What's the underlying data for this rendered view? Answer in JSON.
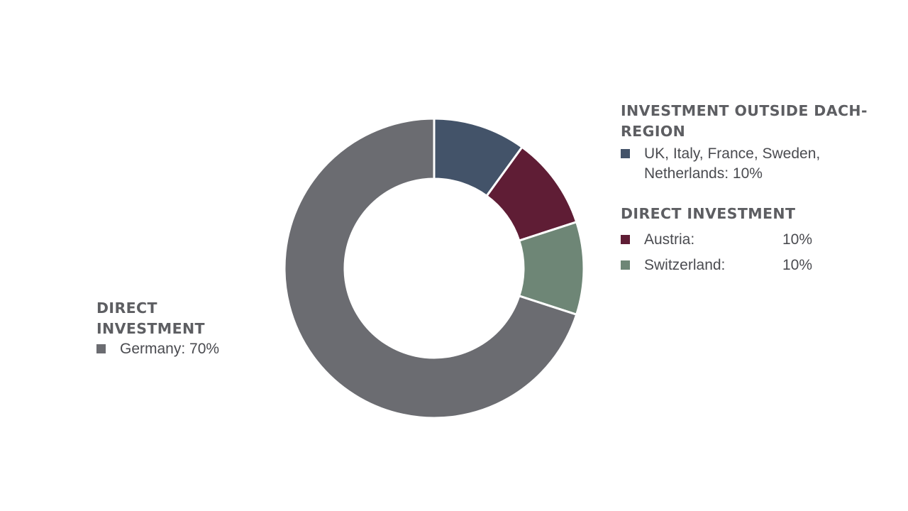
{
  "chart_data": {
    "type": "pie",
    "donut": true,
    "start_angle_deg": 0,
    "direction": "clockwise",
    "slices": [
      {
        "label": "UK, Italy, France, Sweden, Netherlands",
        "value": 10,
        "color": "#435369"
      },
      {
        "label": "Austria",
        "value": 10,
        "color": "#5f1d35"
      },
      {
        "label": "Switzerland",
        "value": 10,
        "color": "#6e8676"
      },
      {
        "label": "Germany",
        "value": 70,
        "color": "#6b6c71"
      }
    ],
    "legend": {
      "left": {
        "heading": "DIRECT INVESTMENT",
        "items": [
          {
            "text": "Germany: 70%",
            "color": "#6b6c71"
          }
        ]
      },
      "outside": {
        "heading": "INVESTMENT OUTSIDE DACH-REGION",
        "items": [
          {
            "text": "UK, Italy, France, Sweden, Netherlands: 10%",
            "color": "#435369"
          }
        ]
      },
      "direct": {
        "heading": "DIRECT INVESTMENT",
        "items": [
          {
            "name": "Austria:",
            "value": "10%",
            "color": "#5f1d35"
          },
          {
            "name": "Switzerland:",
            "value": "10%",
            "color": "#6e8676"
          }
        ]
      }
    }
  }
}
